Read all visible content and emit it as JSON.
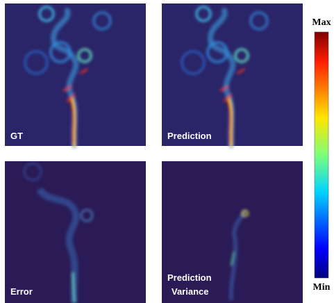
{
  "panels": [
    {
      "label": "GT"
    },
    {
      "label": "Prediction"
    },
    {
      "label": "Error"
    },
    {
      "label_lines": [
        "Prediction",
        "Variance"
      ]
    }
  ],
  "colorbar": {
    "max": "Max",
    "min": "Min"
  }
}
